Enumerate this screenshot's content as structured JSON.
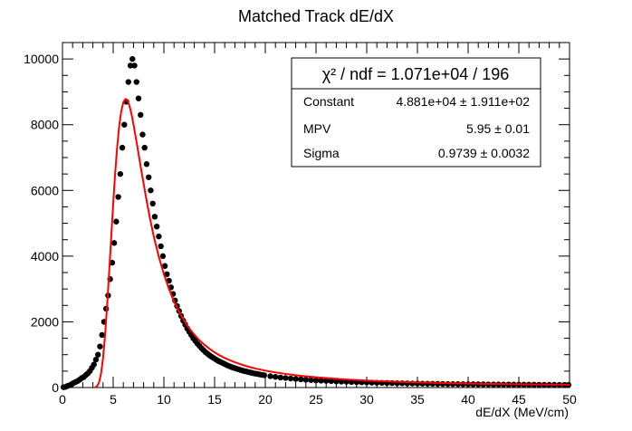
{
  "chart_data": {
    "type": "scatter",
    "title": "Matched Track dE/dX",
    "xlabel": "dE/dX (MeV/cm)",
    "ylabel": "",
    "xlim": [
      0,
      50
    ],
    "ylim": [
      0,
      10500
    ],
    "x_ticks": [
      0,
      5,
      10,
      15,
      20,
      25,
      30,
      35,
      40,
      45,
      50
    ],
    "y_ticks": [
      0,
      2000,
      4000,
      6000,
      8000,
      10000
    ],
    "grid": false,
    "series": [
      {
        "name": "",
        "kind": "points",
        "color": "#000000",
        "points": [
          [
            0.1,
            10
          ],
          [
            0.3,
            20
          ],
          [
            0.5,
            50
          ],
          [
            0.7,
            70
          ],
          [
            0.9,
            100
          ],
          [
            1.1,
            140
          ],
          [
            1.3,
            170
          ],
          [
            1.5,
            200
          ],
          [
            1.7,
            240
          ],
          [
            1.9,
            290
          ],
          [
            2.1,
            320
          ],
          [
            2.3,
            380
          ],
          [
            2.5,
            430
          ],
          [
            2.7,
            500
          ],
          [
            2.9,
            600
          ],
          [
            3.1,
            700
          ],
          [
            3.3,
            850
          ],
          [
            3.5,
            1000
          ],
          [
            3.7,
            1250
          ],
          [
            3.9,
            1600
          ],
          [
            4.1,
            2000
          ],
          [
            4.3,
            2400
          ],
          [
            4.5,
            2800
          ],
          [
            4.7,
            3300
          ],
          [
            4.9,
            3800
          ],
          [
            5.1,
            4400
          ],
          [
            5.3,
            5050
          ],
          [
            5.5,
            5800
          ],
          [
            5.7,
            6500
          ],
          [
            5.9,
            7300
          ],
          [
            6.1,
            8000
          ],
          [
            6.3,
            8700
          ],
          [
            6.5,
            9300
          ],
          [
            6.7,
            9800
          ],
          [
            6.9,
            10000
          ],
          [
            7.1,
            9800
          ],
          [
            7.3,
            9300
          ],
          [
            7.5,
            8800
          ],
          [
            7.7,
            8300
          ],
          [
            7.9,
            7700
          ],
          [
            8.1,
            7300
          ],
          [
            8.3,
            6800
          ],
          [
            8.5,
            6400
          ],
          [
            8.7,
            6000
          ],
          [
            8.9,
            5600
          ],
          [
            9.1,
            5200
          ],
          [
            9.3,
            4900
          ],
          [
            9.5,
            4600
          ],
          [
            9.7,
            4300
          ],
          [
            9.9,
            4000
          ],
          [
            10.1,
            3700
          ],
          [
            10.3,
            3450
          ],
          [
            10.5,
            3250
          ],
          [
            10.7,
            3050
          ],
          [
            10.9,
            2850
          ],
          [
            11.1,
            2650
          ],
          [
            11.3,
            2480
          ],
          [
            11.5,
            2330
          ],
          [
            11.7,
            2180
          ],
          [
            11.9,
            2040
          ],
          [
            12.1,
            1920
          ],
          [
            12.3,
            1800
          ],
          [
            12.5,
            1700
          ],
          [
            12.7,
            1600
          ],
          [
            12.9,
            1500
          ],
          [
            13.1,
            1420
          ],
          [
            13.3,
            1340
          ],
          [
            13.5,
            1270
          ],
          [
            13.7,
            1200
          ],
          [
            13.9,
            1140
          ],
          [
            14.1,
            1080
          ],
          [
            14.3,
            1030
          ],
          [
            14.5,
            980
          ],
          [
            14.7,
            940
          ],
          [
            14.9,
            900
          ],
          [
            15.1,
            860
          ],
          [
            15.3,
            820
          ],
          [
            15.5,
            790
          ],
          [
            15.7,
            760
          ],
          [
            15.9,
            730
          ],
          [
            16.1,
            700
          ],
          [
            16.3,
            670
          ],
          [
            16.5,
            645
          ],
          [
            16.7,
            620
          ],
          [
            16.9,
            600
          ],
          [
            17.1,
            580
          ],
          [
            17.3,
            560
          ],
          [
            17.5,
            540
          ],
          [
            17.7,
            520
          ],
          [
            17.9,
            505
          ],
          [
            18.1,
            490
          ],
          [
            18.3,
            475
          ],
          [
            18.5,
            460
          ],
          [
            18.7,
            445
          ],
          [
            18.9,
            430
          ],
          [
            19.1,
            420
          ],
          [
            19.3,
            410
          ],
          [
            19.5,
            395
          ],
          [
            19.7,
            385
          ],
          [
            19.9,
            375
          ],
          [
            20.5,
            345
          ],
          [
            21.0,
            325
          ],
          [
            21.5,
            305
          ],
          [
            22.0,
            290
          ],
          [
            22.5,
            275
          ],
          [
            23.0,
            262
          ],
          [
            23.5,
            250
          ],
          [
            24.0,
            238
          ],
          [
            24.5,
            228
          ],
          [
            25.0,
            218
          ],
          [
            25.5,
            210
          ],
          [
            26.0,
            202
          ],
          [
            26.5,
            195
          ],
          [
            27.0,
            188
          ],
          [
            27.5,
            181
          ],
          [
            28.0,
            175
          ],
          [
            28.5,
            169
          ],
          [
            29.0,
            164
          ],
          [
            29.5,
            159
          ],
          [
            30.0,
            154
          ],
          [
            30.5,
            150
          ],
          [
            31.0,
            146
          ],
          [
            31.5,
            142
          ],
          [
            32.0,
            138
          ],
          [
            32.5,
            135
          ],
          [
            33.0,
            132
          ],
          [
            33.5,
            129
          ],
          [
            34.0,
            126
          ],
          [
            34.5,
            123
          ],
          [
            35.0,
            121
          ],
          [
            35.5,
            118
          ],
          [
            36.0,
            116
          ],
          [
            36.5,
            114
          ],
          [
            37.0,
            112
          ],
          [
            37.5,
            110
          ],
          [
            38.0,
            108
          ],
          [
            38.5,
            106
          ],
          [
            39.0,
            104
          ],
          [
            39.5,
            103
          ],
          [
            40.0,
            101
          ],
          [
            40.5,
            100
          ],
          [
            41.0,
            98
          ],
          [
            41.5,
            97
          ],
          [
            42.0,
            96
          ],
          [
            42.5,
            94
          ],
          [
            43.0,
            93
          ],
          [
            43.5,
            92
          ],
          [
            44.0,
            91
          ],
          [
            44.5,
            90
          ],
          [
            45.0,
            89
          ],
          [
            45.5,
            88
          ],
          [
            46.0,
            87
          ],
          [
            46.5,
            86
          ],
          [
            47.0,
            85
          ],
          [
            47.5,
            84
          ],
          [
            48.0,
            84
          ],
          [
            48.5,
            83
          ],
          [
            49.0,
            82
          ],
          [
            49.5,
            81
          ],
          [
            49.9,
            81
          ]
        ]
      },
      {
        "name": "",
        "kind": "line",
        "color": "#ff0000",
        "points": [
          [
            3.2,
            0
          ],
          [
            3.4,
            40
          ],
          [
            3.6,
            150
          ],
          [
            3.8,
            420
          ],
          [
            4.0,
            900
          ],
          [
            4.2,
            1600
          ],
          [
            4.4,
            2500
          ],
          [
            4.6,
            3500
          ],
          [
            4.8,
            4550
          ],
          [
            5.0,
            5600
          ],
          [
            5.2,
            6550
          ],
          [
            5.4,
            7350
          ],
          [
            5.6,
            7980
          ],
          [
            5.8,
            8420
          ],
          [
            6.0,
            8680
          ],
          [
            6.2,
            8780
          ],
          [
            6.4,
            8740
          ],
          [
            6.6,
            8580
          ],
          [
            6.8,
            8330
          ],
          [
            7.0,
            8010
          ],
          [
            7.4,
            7300
          ],
          [
            7.8,
            6560
          ],
          [
            8.2,
            5850
          ],
          [
            8.6,
            5190
          ],
          [
            9.0,
            4600
          ],
          [
            9.5,
            3980
          ],
          [
            10.0,
            3450
          ],
          [
            10.5,
            3000
          ],
          [
            11.0,
            2620
          ],
          [
            11.5,
            2300
          ],
          [
            12.0,
            2030
          ],
          [
            12.5,
            1800
          ],
          [
            13.0,
            1610
          ],
          [
            13.5,
            1440
          ],
          [
            14.0,
            1300
          ],
          [
            14.5,
            1180
          ],
          [
            15.0,
            1070
          ],
          [
            15.5,
            980
          ],
          [
            16.0,
            900
          ],
          [
            16.5,
            830
          ],
          [
            17.0,
            770
          ],
          [
            17.5,
            715
          ],
          [
            18.0,
            665
          ],
          [
            18.5,
            620
          ],
          [
            19.0,
            580
          ],
          [
            20.0,
            515
          ],
          [
            21.0,
            460
          ],
          [
            22.0,
            415
          ],
          [
            23.0,
            375
          ],
          [
            24.0,
            342
          ],
          [
            25.0,
            313
          ],
          [
            26.0,
            288
          ],
          [
            27.0,
            265
          ],
          [
            28.0,
            245
          ],
          [
            29.0,
            228
          ],
          [
            30.0,
            212
          ],
          [
            31.0,
            198
          ],
          [
            32.0,
            186
          ],
          [
            33.0,
            175
          ],
          [
            34.0,
            165
          ],
          [
            35.0,
            156
          ],
          [
            36.0,
            148
          ],
          [
            37.0,
            141
          ],
          [
            38.0,
            134
          ],
          [
            39.0,
            128
          ],
          [
            40.0,
            122
          ],
          [
            41.0,
            117
          ],
          [
            42.0,
            112
          ],
          [
            43.0,
            108
          ],
          [
            44.0,
            104
          ],
          [
            45.0,
            100
          ],
          [
            46.0,
            97
          ],
          [
            47.0,
            94
          ],
          [
            48.0,
            91
          ],
          [
            49.0,
            88
          ],
          [
            50.0,
            86
          ]
        ]
      }
    ]
  },
  "stats": {
    "header": "χ² / ndf = 1.071e+04 / 196",
    "rows": [
      {
        "label": "Constant",
        "value": "4.881e+04 ± 1.911e+02"
      },
      {
        "label": "MPV",
        "value": "5.95 ± 0.01"
      },
      {
        "label": "Sigma",
        "value": "0.9739 ± 0.0032"
      }
    ]
  }
}
